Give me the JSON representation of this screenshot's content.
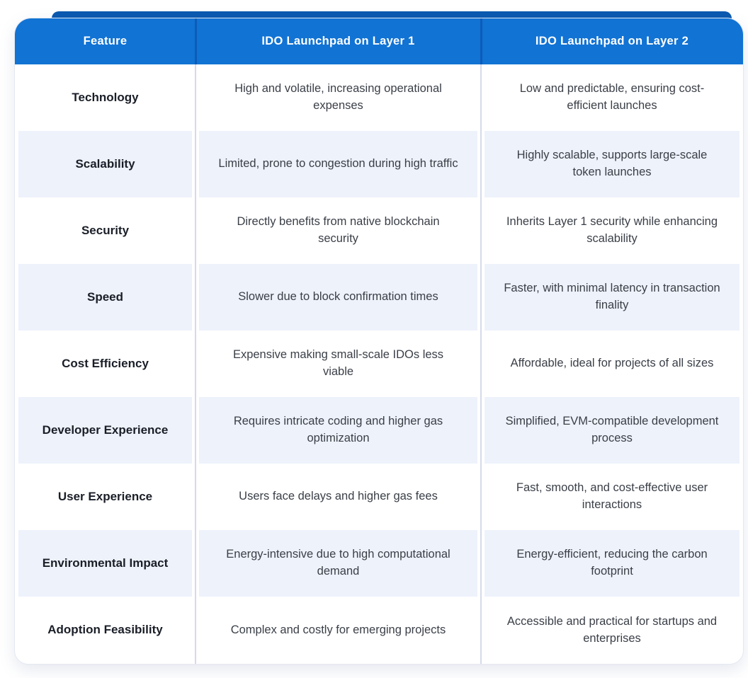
{
  "colors": {
    "header_bg": "#1173d4",
    "header_divider": "#0d5bb8",
    "accent_bar": "#0a59b0",
    "row_alt_bg": "#edf2fb",
    "body_divider": "#d6daea",
    "header_text": "#ffffff",
    "feature_text": "#1a1e27",
    "cell_text": "#3a3f47"
  },
  "table": {
    "columns": [
      {
        "label": "Feature"
      },
      {
        "label": "IDO Launchpad on Layer 1"
      },
      {
        "label": "IDO Launchpad on Layer 2"
      }
    ],
    "rows": [
      {
        "feature": "Technology",
        "layer1": "High and volatile, increasing operational expenses",
        "layer2": "Low and predictable, ensuring cost-efficient launches"
      },
      {
        "feature": "Scalability",
        "layer1": "Limited, prone to congestion during high traffic",
        "layer2": "Highly scalable, supports large-scale token launches"
      },
      {
        "feature": "Security",
        "layer1": "Directly benefits from native blockchain security",
        "layer2": "Inherits Layer 1 security while enhancing scalability"
      },
      {
        "feature": "Speed",
        "layer1": "Slower due to block confirmation times",
        "layer2": "Faster, with minimal latency in transaction finality"
      },
      {
        "feature": "Cost Efficiency",
        "layer1": "Expensive making small-scale IDOs less viable",
        "layer2": "Affordable, ideal for projects of all sizes"
      },
      {
        "feature": "Developer Experience",
        "layer1": "Requires intricate coding and higher gas optimization",
        "layer2": "Simplified, EVM-compatible development process"
      },
      {
        "feature": "User Experience",
        "layer1": "Users face delays and higher gas fees",
        "layer2": "Fast, smooth, and cost-effective user interactions"
      },
      {
        "feature": "Environmental Impact",
        "layer1": "Energy-intensive due to high computational demand",
        "layer2": "Energy-efficient, reducing the carbon footprint"
      },
      {
        "feature": "Adoption Feasibility",
        "layer1": "Complex and costly for emerging projects",
        "layer2": "Accessible and practical for startups and enterprises"
      }
    ]
  }
}
